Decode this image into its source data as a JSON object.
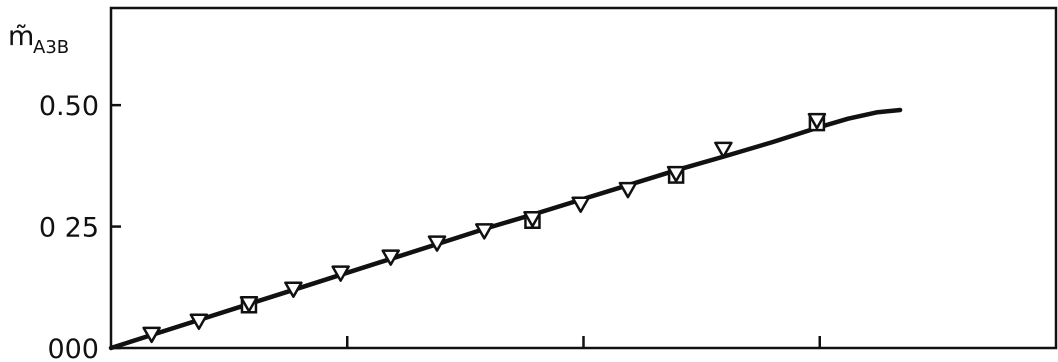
{
  "chart_data": {
    "type": "scatter",
    "ylabel": "m̃",
    "ylabel_subscript": "A3B",
    "xlim": [
      0,
      1
    ],
    "ylim": [
      0,
      0.7
    ],
    "x_ticks": [
      0,
      0.25,
      0.5,
      0.75,
      1.0
    ],
    "y_ticks": [
      0.0,
      0.25,
      0.5
    ],
    "y_tick_labels": [
      "000",
      "0 25",
      "0.50"
    ],
    "grid": false,
    "series": [
      {
        "marker": "triangle-down-open",
        "points": [
          {
            "x": 0.043,
            "y": 0.027
          },
          {
            "x": 0.093,
            "y": 0.054
          },
          {
            "x": 0.146,
            "y": 0.09
          },
          {
            "x": 0.193,
            "y": 0.12
          },
          {
            "x": 0.243,
            "y": 0.153
          },
          {
            "x": 0.296,
            "y": 0.186
          },
          {
            "x": 0.345,
            "y": 0.215
          },
          {
            "x": 0.395,
            "y": 0.24
          },
          {
            "x": 0.446,
            "y": 0.265
          },
          {
            "x": 0.497,
            "y": 0.295
          },
          {
            "x": 0.547,
            "y": 0.325
          },
          {
            "x": 0.598,
            "y": 0.358
          },
          {
            "x": 0.648,
            "y": 0.408
          },
          {
            "x": 0.747,
            "y": 0.467
          }
        ]
      },
      {
        "marker": "square-open",
        "points": [
          {
            "x": 0.146,
            "y": 0.088
          },
          {
            "x": 0.446,
            "y": 0.262
          },
          {
            "x": 0.598,
            "y": 0.355
          },
          {
            "x": 0.747,
            "y": 0.463
          }
        ]
      },
      {
        "marker": "line",
        "x": [
          0.0,
          0.05,
          0.1,
          0.15,
          0.2,
          0.25,
          0.3,
          0.35,
          0.4,
          0.45,
          0.5,
          0.55,
          0.6,
          0.65,
          0.7,
          0.75,
          0.78,
          0.81,
          0.835
        ],
        "y": [
          0.0,
          0.031,
          0.062,
          0.093,
          0.124,
          0.155,
          0.186,
          0.217,
          0.248,
          0.277,
          0.307,
          0.337,
          0.367,
          0.395,
          0.424,
          0.455,
          0.472,
          0.485,
          0.49
        ]
      }
    ]
  }
}
